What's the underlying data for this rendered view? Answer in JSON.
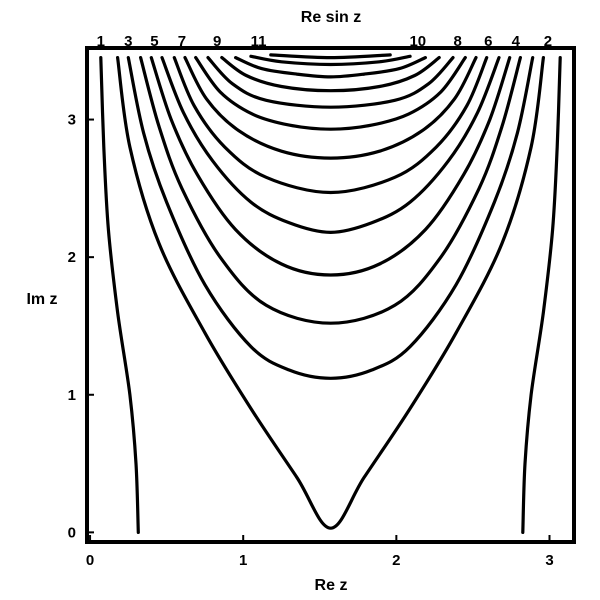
{
  "chart_data": {
    "type": "line",
    "title": "Re sin z",
    "xlabel": "Re z",
    "ylabel": "Im z",
    "xlim": [
      -0.02,
      3.16
    ],
    "ylim": [
      -0.07,
      3.52
    ],
    "x_ticks": [
      {
        "value": 0,
        "label": "0"
      },
      {
        "value": 1,
        "label": "1"
      },
      {
        "value": 2,
        "label": "2"
      },
      {
        "value": 3,
        "label": "3"
      }
    ],
    "y_ticks": [
      {
        "value": 0,
        "label": "0"
      },
      {
        "value": 1,
        "label": "1"
      },
      {
        "value": 2,
        "label": "2"
      },
      {
        "value": 3,
        "label": "3"
      }
    ],
    "contour_levels": [
      {
        "label": "1",
        "x": 0.07
      },
      {
        "label": "3",
        "x": 0.25
      },
      {
        "label": "5",
        "x": 0.42
      },
      {
        "label": "7",
        "x": 0.6
      },
      {
        "label": "9",
        "x": 0.83
      },
      {
        "label": "11",
        "x": 1.1
      },
      {
        "label": "10",
        "x": 2.14
      },
      {
        "label": "8",
        "x": 2.4
      },
      {
        "label": "6",
        "x": 2.6
      },
      {
        "label": "4",
        "x": 2.78
      },
      {
        "label": "2",
        "x": 2.99
      }
    ],
    "series": [
      {
        "points": [
          [
            0.315,
            0
          ],
          [
            0.3,
            0.5
          ],
          [
            0.26,
            1.0
          ],
          [
            0.18,
            1.6
          ],
          [
            0.12,
            2.2
          ],
          [
            0.09,
            2.8
          ],
          [
            0.07,
            3.45
          ]
        ]
      },
      {
        "points": [
          [
            2.826,
            0
          ],
          [
            2.84,
            0.5
          ],
          [
            2.88,
            1.0
          ],
          [
            2.96,
            1.6
          ],
          [
            3.02,
            2.2
          ],
          [
            3.05,
            2.8
          ],
          [
            3.07,
            3.45
          ]
        ]
      },
      {
        "points": [
          [
            0.18,
            3.45
          ],
          [
            0.26,
            2.8
          ],
          [
            0.45,
            2.1
          ],
          [
            0.75,
            1.45
          ],
          [
            1.05,
            0.9
          ],
          [
            1.35,
            0.4
          ],
          [
            1.571,
            0.03
          ],
          [
            1.79,
            0.4
          ],
          [
            2.09,
            0.9
          ],
          [
            2.39,
            1.45
          ],
          [
            2.69,
            2.1
          ],
          [
            2.88,
            2.8
          ],
          [
            2.96,
            3.45
          ]
        ]
      },
      {
        "points": [
          [
            0.25,
            3.45
          ],
          [
            0.35,
            2.9
          ],
          [
            0.5,
            2.4
          ],
          [
            0.75,
            1.8
          ],
          [
            1.05,
            1.35
          ],
          [
            1.3,
            1.18
          ],
          [
            1.571,
            1.12
          ],
          [
            1.84,
            1.18
          ],
          [
            2.09,
            1.35
          ],
          [
            2.39,
            1.8
          ],
          [
            2.64,
            2.4
          ],
          [
            2.79,
            2.9
          ],
          [
            2.89,
            3.45
          ]
        ]
      },
      {
        "points": [
          [
            0.33,
            3.45
          ],
          [
            0.45,
            2.95
          ],
          [
            0.6,
            2.5
          ],
          [
            0.85,
            2.0
          ],
          [
            1.15,
            1.65
          ],
          [
            1.571,
            1.52
          ],
          [
            1.99,
            1.65
          ],
          [
            2.29,
            2.0
          ],
          [
            2.54,
            2.5
          ],
          [
            2.69,
            2.95
          ],
          [
            2.81,
            3.45
          ]
        ]
      },
      {
        "points": [
          [
            0.4,
            3.45
          ],
          [
            0.53,
            3.0
          ],
          [
            0.7,
            2.6
          ],
          [
            0.95,
            2.2
          ],
          [
            1.25,
            1.95
          ],
          [
            1.571,
            1.87
          ],
          [
            1.89,
            1.95
          ],
          [
            2.19,
            2.2
          ],
          [
            2.44,
            2.6
          ],
          [
            2.61,
            3.0
          ],
          [
            2.74,
            3.45
          ]
        ]
      },
      {
        "points": [
          [
            0.47,
            3.45
          ],
          [
            0.61,
            3.05
          ],
          [
            0.8,
            2.7
          ],
          [
            1.05,
            2.4
          ],
          [
            1.3,
            2.25
          ],
          [
            1.571,
            2.18
          ],
          [
            1.84,
            2.25
          ],
          [
            2.09,
            2.4
          ],
          [
            2.34,
            2.7
          ],
          [
            2.53,
            3.05
          ],
          [
            2.67,
            3.45
          ]
        ]
      },
      {
        "points": [
          [
            0.55,
            3.45
          ],
          [
            0.68,
            3.1
          ],
          [
            0.88,
            2.8
          ],
          [
            1.15,
            2.58
          ],
          [
            1.571,
            2.47
          ],
          [
            1.99,
            2.58
          ],
          [
            2.26,
            2.8
          ],
          [
            2.46,
            3.1
          ],
          [
            2.59,
            3.45
          ]
        ]
      },
      {
        "points": [
          [
            0.62,
            3.45
          ],
          [
            0.76,
            3.15
          ],
          [
            0.97,
            2.92
          ],
          [
            1.25,
            2.77
          ],
          [
            1.571,
            2.72
          ],
          [
            1.89,
            2.77
          ],
          [
            2.17,
            2.92
          ],
          [
            2.38,
            3.15
          ],
          [
            2.52,
            3.45
          ]
        ]
      },
      {
        "points": [
          [
            0.69,
            3.45
          ],
          [
            0.85,
            3.2
          ],
          [
            1.06,
            3.04
          ],
          [
            1.3,
            2.96
          ],
          [
            1.571,
            2.93
          ],
          [
            1.84,
            2.96
          ],
          [
            2.08,
            3.04
          ],
          [
            2.29,
            3.2
          ],
          [
            2.45,
            3.45
          ]
        ]
      },
      {
        "points": [
          [
            0.77,
            3.45
          ],
          [
            0.93,
            3.26
          ],
          [
            1.15,
            3.14
          ],
          [
            1.571,
            3.09
          ],
          [
            1.99,
            3.14
          ],
          [
            2.21,
            3.26
          ],
          [
            2.37,
            3.45
          ]
        ]
      },
      {
        "points": [
          [
            0.86,
            3.45
          ],
          [
            1.02,
            3.32
          ],
          [
            1.25,
            3.24
          ],
          [
            1.571,
            3.21
          ],
          [
            1.89,
            3.24
          ],
          [
            2.12,
            3.32
          ],
          [
            2.28,
            3.45
          ]
        ]
      },
      {
        "points": [
          [
            0.95,
            3.45
          ],
          [
            1.12,
            3.37
          ],
          [
            1.35,
            3.33
          ],
          [
            1.571,
            3.31
          ],
          [
            1.79,
            3.33
          ],
          [
            2.02,
            3.37
          ],
          [
            2.19,
            3.45
          ]
        ]
      },
      {
        "points": [
          [
            1.05,
            3.46
          ],
          [
            1.25,
            3.42
          ],
          [
            1.571,
            3.4
          ],
          [
            1.89,
            3.42
          ],
          [
            2.09,
            3.46
          ]
        ]
      },
      {
        "points": [
          [
            1.18,
            3.47
          ],
          [
            1.571,
            3.45
          ],
          [
            1.96,
            3.47
          ]
        ]
      }
    ]
  }
}
